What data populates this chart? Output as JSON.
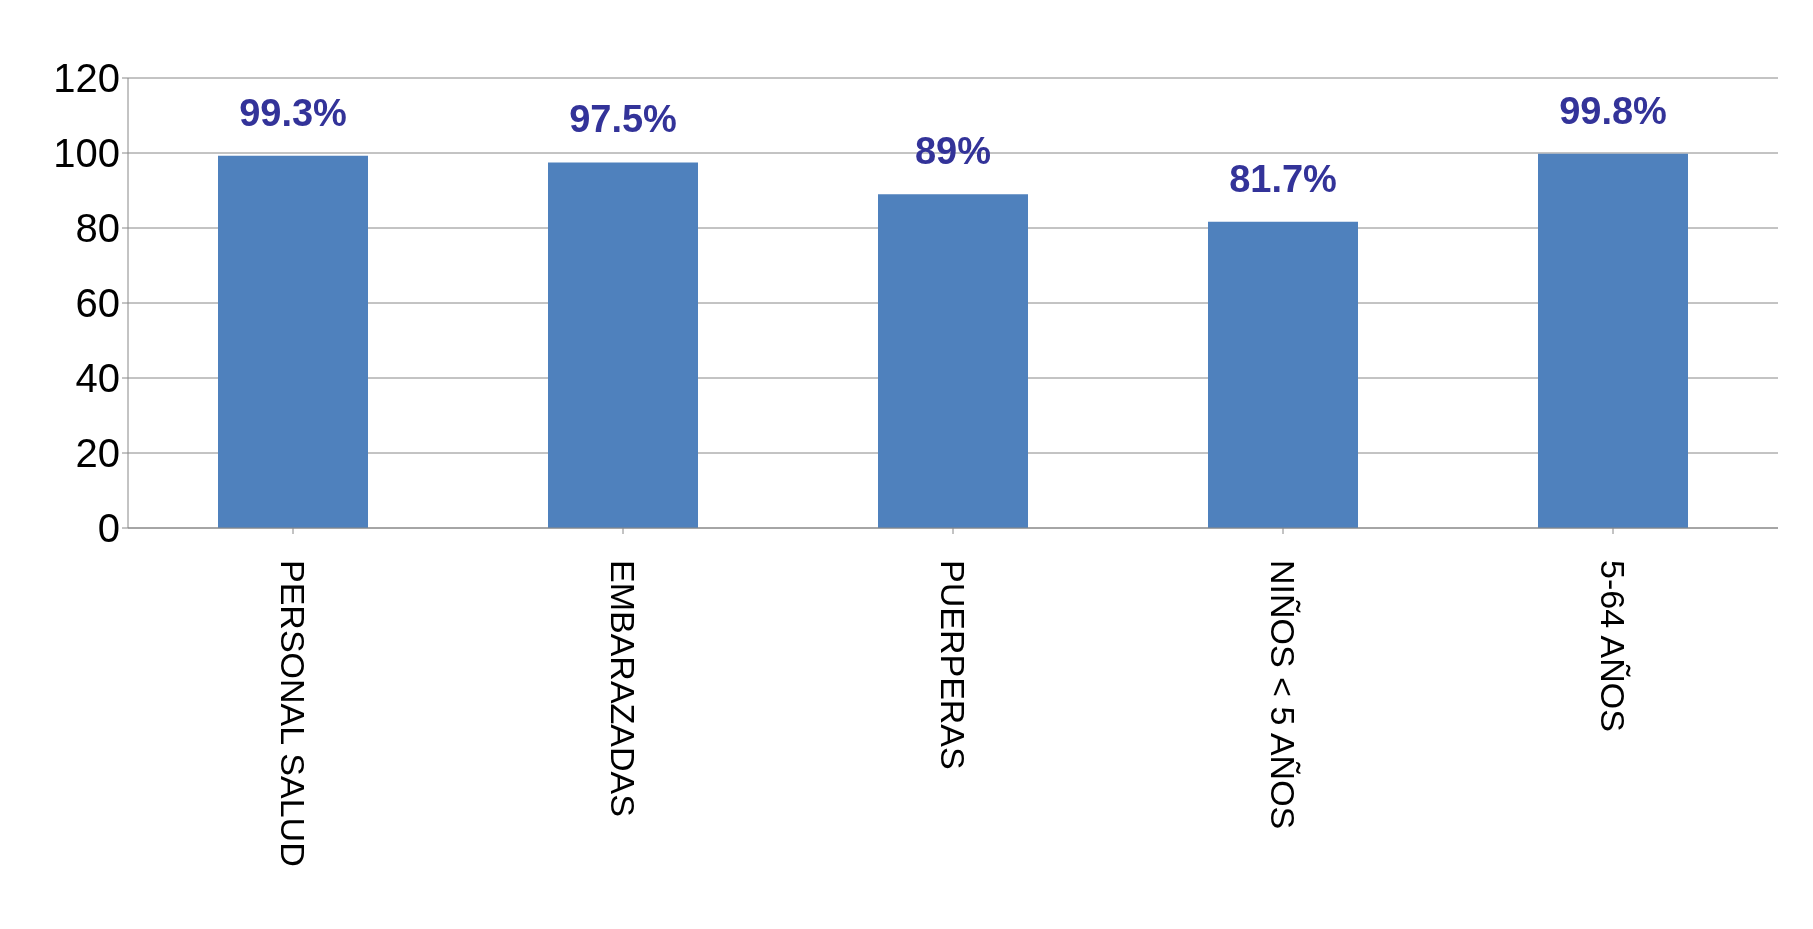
{
  "chart_data": {
    "type": "bar",
    "categories": [
      "PERSONAL SALUD",
      "EMBARAZADAS",
      "PUERPERAS",
      "NIÑOS < 5 AÑOS",
      "5-64 AÑOS"
    ],
    "values": [
      99.3,
      97.5,
      89,
      81.7,
      99.8
    ],
    "value_labels": [
      "99.3%",
      "97.5%",
      "89%",
      "81.7%",
      "99.8%"
    ],
    "color": "#4f81bd",
    "ylim": [
      0,
      120
    ],
    "yticks": [
      0,
      20,
      40,
      60,
      80,
      100,
      120
    ],
    "grid": "y"
  }
}
